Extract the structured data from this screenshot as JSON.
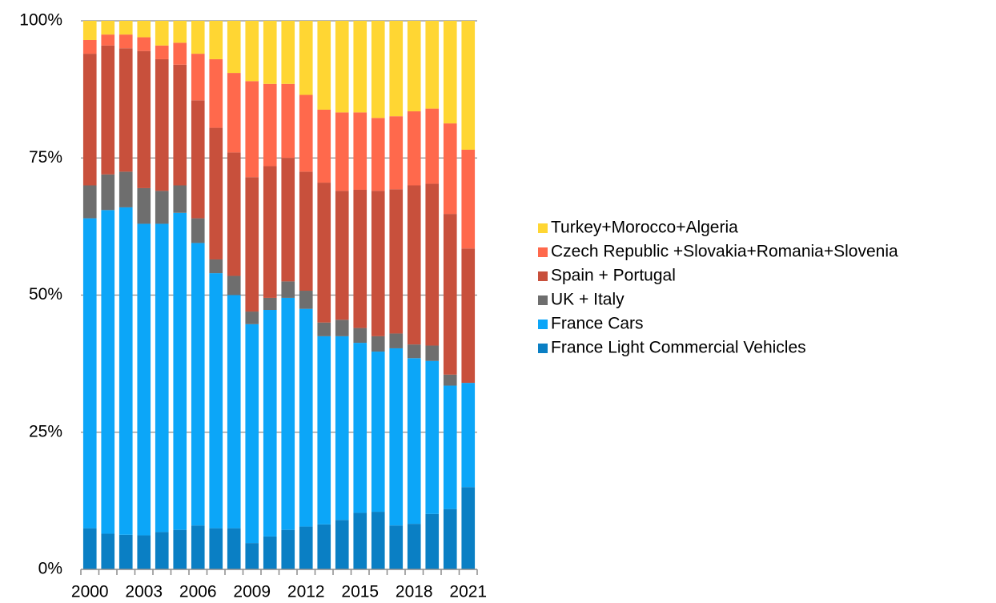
{
  "chart_data": {
    "type": "stacked_bar",
    "categories": [
      "2000",
      null,
      null,
      "2003",
      null,
      null,
      "2006",
      null,
      null,
      "2009",
      null,
      null,
      "2012",
      null,
      null,
      "2015",
      null,
      null,
      "2018",
      null,
      null,
      "2021"
    ],
    "series": [
      {
        "name": "France Light Commercial Vehicles",
        "color": "#0a7fc4",
        "values": [
          7.5,
          6.5,
          6.3,
          6.2,
          6.8,
          7.2,
          8,
          7.5,
          7.5,
          4.8,
          6,
          7.2,
          7.8,
          8.2,
          9,
          10.3,
          10.5,
          8,
          8.3,
          10.1,
          11,
          15
        ]
      },
      {
        "name": "France Cars",
        "color": "#0ca6f8",
        "values": [
          56.5,
          59,
          59.7,
          56.8,
          56.2,
          57.8,
          51.5,
          46.5,
          42.5,
          39.9,
          41.3,
          42.3,
          39.7,
          34.3,
          33.5,
          31,
          29.2,
          32.3,
          30.2,
          27.9,
          22.5,
          19
        ]
      },
      {
        "name": "UK + Italy",
        "color": "#6e6e6e",
        "values": [
          6,
          6.5,
          6.5,
          6.5,
          6,
          5,
          4.5,
          2.5,
          3.5,
          2.3,
          2.2,
          3,
          3.3,
          2.5,
          3,
          2.7,
          2.8,
          2.7,
          2.5,
          2.8,
          2,
          0
        ]
      },
      {
        "name": "Spain + Portugal",
        "color": "#c8503c",
        "values": [
          24,
          23.5,
          22.5,
          25,
          24,
          22,
          21.5,
          24,
          22.5,
          24.5,
          24,
          22.5,
          21.7,
          25.5,
          23.5,
          25.2,
          26.5,
          26.3,
          29,
          29.5,
          29.3,
          24.5
        ]
      },
      {
        "name": "Czech Republic +Slovakia+Romania+Slovenia",
        "color": "#ff694c",
        "values": [
          2.5,
          2,
          2.5,
          2.5,
          2.5,
          4,
          8.5,
          12.5,
          14.5,
          17.5,
          15,
          13.5,
          14,
          13.3,
          14.3,
          14.1,
          13.3,
          13.3,
          13.5,
          13.7,
          16.5,
          18
        ]
      },
      {
        "name": "Turkey+Morocco+Algeria",
        "color": "#ffd633",
        "values": [
          3.5,
          2.5,
          2.5,
          3,
          4.5,
          4,
          6,
          7,
          9.5,
          11,
          11.5,
          11.5,
          13.5,
          16.2,
          16.7,
          16.7,
          17.7,
          17.4,
          16.5,
          16,
          18.7,
          23.5
        ]
      }
    ],
    "ylim": [
      0,
      100
    ],
    "yticks": [
      {
        "value": 0,
        "label": "0%"
      },
      {
        "value": 25,
        "label": "25%"
      },
      {
        "value": 50,
        "label": "50%"
      },
      {
        "value": 75,
        "label": "75%"
      },
      {
        "value": 100,
        "label": "100%"
      }
    ],
    "grid": true,
    "legend": "right"
  }
}
